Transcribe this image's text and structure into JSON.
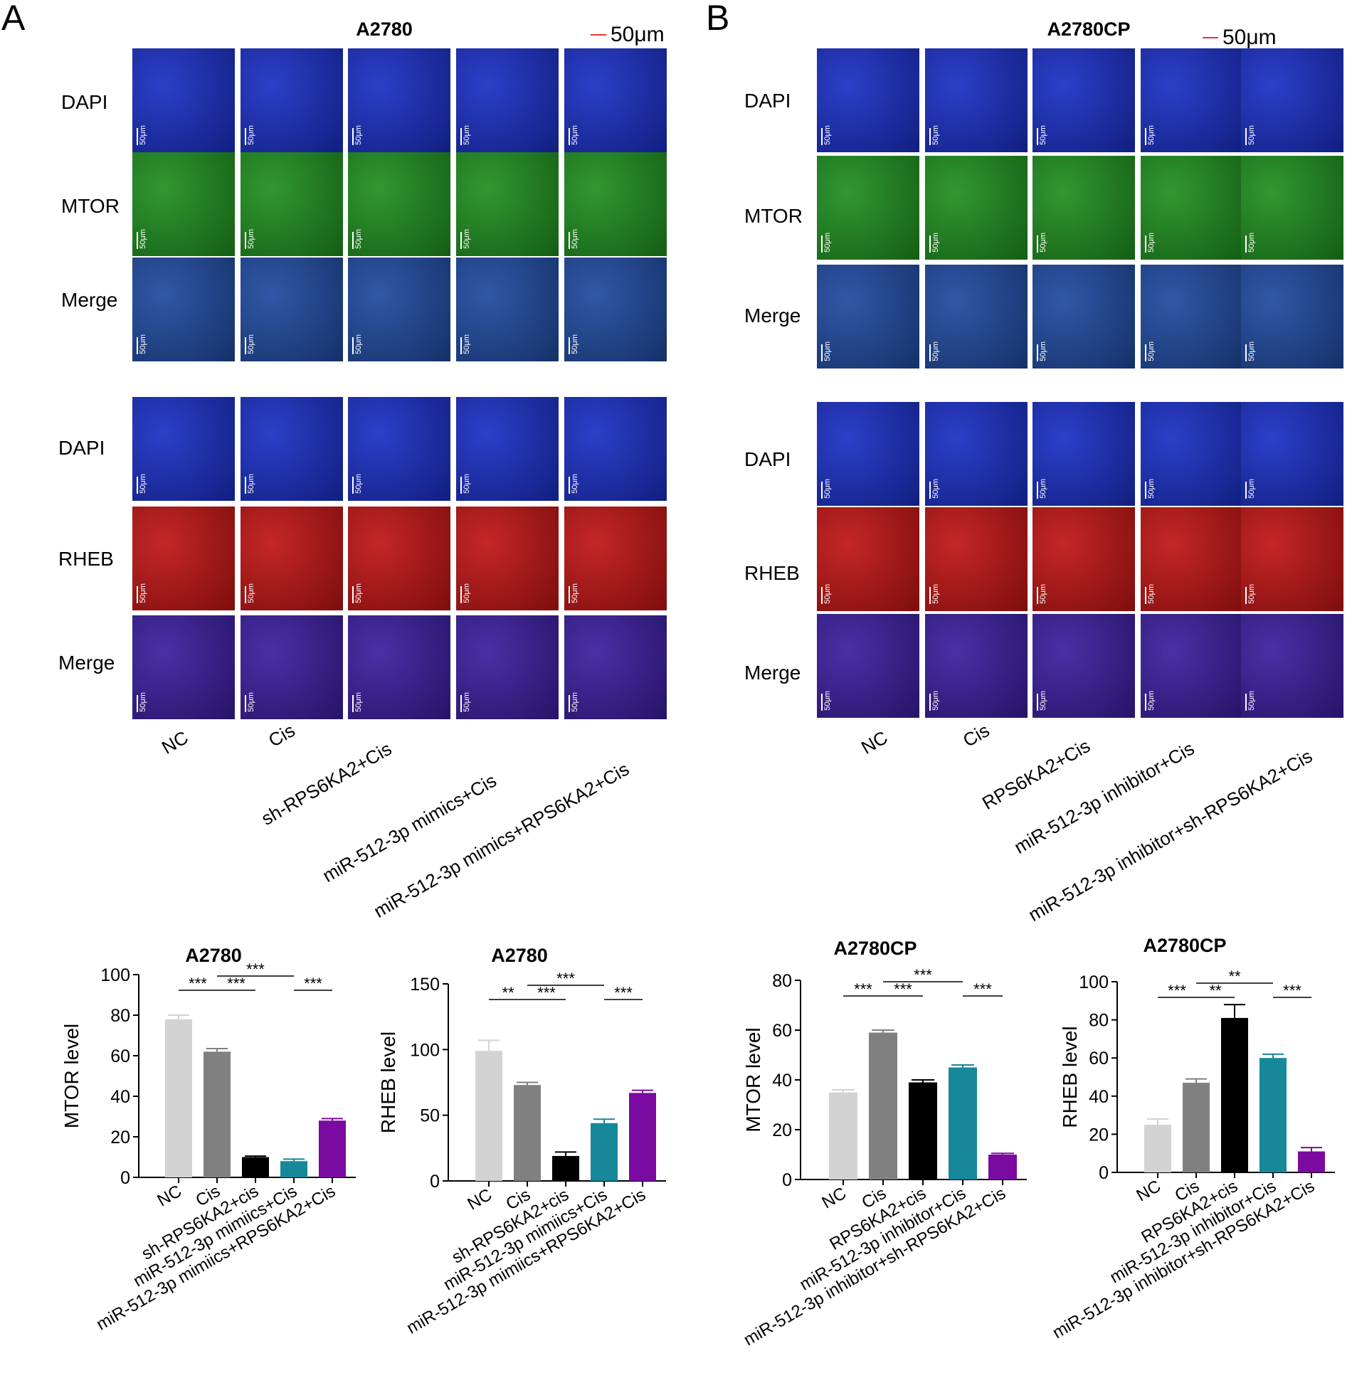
{
  "panel_a": {
    "letter": "A",
    "title": "A2780",
    "scale_label": "50μm",
    "row_labels_mtor": [
      "DAPI",
      "MTOR",
      "Merge"
    ],
    "row_labels_rheb": [
      "DAPI",
      "RHEB",
      "Merge"
    ],
    "image_scale_label": "50μm",
    "group_labels": [
      "NC",
      "Cis",
      "sh-RPS6KA2+Cis",
      "miR-512-3p mimics+Cis",
      "miR-512-3p mimics+RPS6KA2+Cis"
    ]
  },
  "panel_b": {
    "letter": "B",
    "title": "A2780CP",
    "scale_label": "50μm",
    "row_labels_mtor": [
      "DAPI",
      "MTOR",
      "Merge"
    ],
    "row_labels_rheb": [
      "DAPI",
      "RHEB",
      "Merge"
    ],
    "image_scale_label": "50μm",
    "group_labels": [
      "NC",
      "Cis",
      "RPS6KA2+Cis",
      "miR-512-3p inhibitor+Cis",
      "miR-512-3p inhibitor+sh-RPS6KA2+Cis"
    ]
  },
  "image_colors": {
    "DAPI": "#1a2fc4",
    "MTOR": "#1f8f1f",
    "RHEB": "#c01414",
    "MergeMTOR": "#1f4aa0",
    "MergeRHEB": "#3a1e9e"
  },
  "chart_data": [
    {
      "type": "bar",
      "title": "A2780",
      "ylabel": "MTOR level",
      "ylim": [
        0,
        100
      ],
      "yticks": [
        0,
        20,
        40,
        60,
        80,
        100
      ],
      "categories": [
        "NC",
        "Cis",
        "sh-RPS6KA2+cis",
        "miR-512-3p mimiics+Cis",
        "miR-512-3p mimiics+RPS6KA2+Cis"
      ],
      "values": [
        78,
        62,
        10,
        8,
        28
      ],
      "errors": [
        2,
        1.5,
        0.5,
        1,
        1
      ],
      "colors": [
        "#d3d3d3",
        "#808080",
        "#000000",
        "#17879a",
        "#7a0aa0"
      ],
      "significance": [
        {
          "from": 0,
          "to": 1,
          "label": "***",
          "level": 1
        },
        {
          "from": 1,
          "to": 2,
          "label": "***",
          "level": 1
        },
        {
          "from": 3,
          "to": 4,
          "label": "***",
          "level": 1
        },
        {
          "from": 1,
          "to": 3,
          "label": "***",
          "level": 2
        }
      ]
    },
    {
      "type": "bar",
      "title": "A2780",
      "ylabel": "RHEB level",
      "ylim": [
        0,
        150
      ],
      "yticks": [
        0,
        50,
        100,
        150
      ],
      "categories": [
        "NC",
        "Cis",
        "sh-RPS6KA2+cis",
        "miR-512-3p mimiics+Cis",
        "miR-512-3p mimiics+RPS6KA2+Cis"
      ],
      "values": [
        99,
        73,
        19,
        44,
        67
      ],
      "errors": [
        8,
        2,
        3,
        3,
        2
      ],
      "colors": [
        "#d3d3d3",
        "#808080",
        "#000000",
        "#17879a",
        "#7a0aa0"
      ],
      "significance": [
        {
          "from": 0,
          "to": 1,
          "label": "**",
          "level": 1
        },
        {
          "from": 1,
          "to": 2,
          "label": "***",
          "level": 1
        },
        {
          "from": 3,
          "to": 4,
          "label": "***",
          "level": 1
        },
        {
          "from": 1,
          "to": 3,
          "label": "***",
          "level": 2
        }
      ]
    },
    {
      "type": "bar",
      "title": "A2780CP",
      "ylabel": "MTOR level",
      "ylim": [
        0,
        80
      ],
      "yticks": [
        0,
        20,
        40,
        60,
        80
      ],
      "categories": [
        "NC",
        "Cis",
        "RPS6KA2+cis",
        "miR-512-3p inhibitor+Cis",
        "miR-512-3p inhibitor+sh-RPS6KA2+Cis"
      ],
      "values": [
        35,
        59,
        39,
        45,
        10
      ],
      "errors": [
        1,
        1,
        1,
        1,
        0.5
      ],
      "colors": [
        "#d3d3d3",
        "#808080",
        "#000000",
        "#17879a",
        "#7a0aa0"
      ],
      "significance": [
        {
          "from": 0,
          "to": 1,
          "label": "***",
          "level": 1
        },
        {
          "from": 1,
          "to": 2,
          "label": "***",
          "level": 1
        },
        {
          "from": 3,
          "to": 4,
          "label": "***",
          "level": 1
        },
        {
          "from": 1,
          "to": 3,
          "label": "***",
          "level": 2
        }
      ]
    },
    {
      "type": "bar",
      "title": "A2780CP",
      "ylabel": "RHEB level",
      "ylim": [
        0,
        100
      ],
      "yticks": [
        0,
        20,
        40,
        60,
        80,
        100
      ],
      "categories": [
        "NC",
        "Cis",
        "RPS6KA2+cis",
        "miR-512-3p inhibitor+Cis",
        "miR-512-3p inhibitor+sh-RPS6KA2+Cis"
      ],
      "values": [
        25,
        47,
        81,
        60,
        11
      ],
      "errors": [
        3,
        2,
        7,
        2,
        2
      ],
      "colors": [
        "#d3d3d3",
        "#808080",
        "#000000",
        "#17879a",
        "#7a0aa0"
      ],
      "significance": [
        {
          "from": 0,
          "to": 1,
          "label": "***",
          "level": 1
        },
        {
          "from": 1,
          "to": 2,
          "label": "**",
          "level": 1
        },
        {
          "from": 3,
          "to": 4,
          "label": "***",
          "level": 1
        },
        {
          "from": 1,
          "to": 3,
          "label": "**",
          "level": 2
        }
      ]
    }
  ]
}
